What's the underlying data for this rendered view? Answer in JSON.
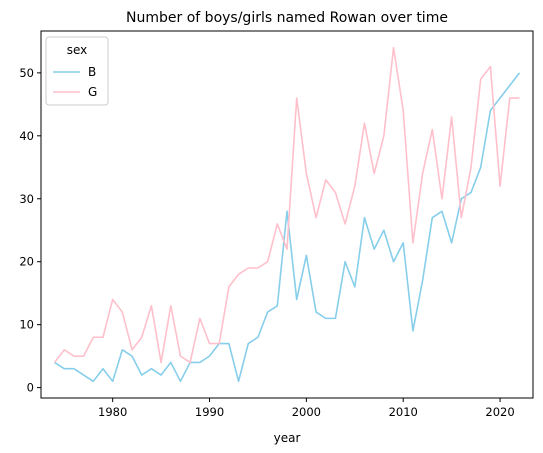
{
  "chart_data": {
    "type": "line",
    "title": "Number of boys/girls named Rowan over time",
    "xlabel": "year",
    "ylabel": "",
    "xlim": [
      1972.6,
      2023.4
    ],
    "ylim": [
      -1.65,
      56.65
    ],
    "xticks": [
      1980,
      1990,
      2000,
      2010,
      2020
    ],
    "yticks": [
      0,
      10,
      20,
      30,
      40,
      50
    ],
    "grid": false,
    "legend": {
      "title": "sex",
      "placement": "top-left"
    },
    "series": [
      {
        "name": "B",
        "color": "#87ceeb",
        "x": [
          1974,
          1975,
          1976,
          1977,
          1978,
          1979,
          1980,
          1981,
          1982,
          1983,
          1984,
          1985,
          1986,
          1987,
          1988,
          1989,
          1990,
          1991,
          1992,
          1993,
          1994,
          1995,
          1996,
          1997,
          1998,
          1999,
          2000,
          2001,
          2002,
          2003,
          2004,
          2005,
          2006,
          2007,
          2008,
          2009,
          2010,
          2011,
          2012,
          2013,
          2014,
          2015,
          2016,
          2017,
          2018,
          2019,
          2020,
          2021,
          2022
        ],
        "values": [
          4,
          3,
          3,
          2,
          1,
          3,
          1,
          6,
          5,
          2,
          3,
          2,
          4,
          1,
          4,
          4,
          5,
          7,
          7,
          1,
          7,
          8,
          12,
          13,
          28,
          14,
          21,
          12,
          11,
          11,
          20,
          16,
          27,
          22,
          25,
          20,
          23,
          9,
          17,
          27,
          28,
          23,
          30,
          31,
          35,
          44,
          46,
          48,
          50
        ]
      },
      {
        "name": "G",
        "color": "#ffc0cb",
        "x": [
          1974,
          1975,
          1976,
          1977,
          1978,
          1979,
          1980,
          1981,
          1982,
          1983,
          1984,
          1985,
          1986,
          1987,
          1988,
          1989,
          1990,
          1991,
          1992,
          1993,
          1994,
          1995,
          1996,
          1997,
          1998,
          1999,
          2000,
          2001,
          2002,
          2003,
          2004,
          2005,
          2006,
          2007,
          2008,
          2009,
          2010,
          2011,
          2012,
          2013,
          2014,
          2015,
          2016,
          2017,
          2018,
          2019,
          2020,
          2021,
          2022
        ],
        "values": [
          4,
          6,
          5,
          5,
          8,
          8,
          14,
          12,
          6,
          8,
          13,
          4,
          13,
          5,
          4,
          11,
          7,
          7,
          16,
          18,
          19,
          19,
          20,
          26,
          22,
          46,
          34,
          27,
          33,
          31,
          26,
          32,
          42,
          34,
          40,
          54,
          44,
          23,
          34,
          41,
          30,
          43,
          27,
          35,
          49,
          51,
          32,
          46,
          46
        ]
      }
    ]
  }
}
